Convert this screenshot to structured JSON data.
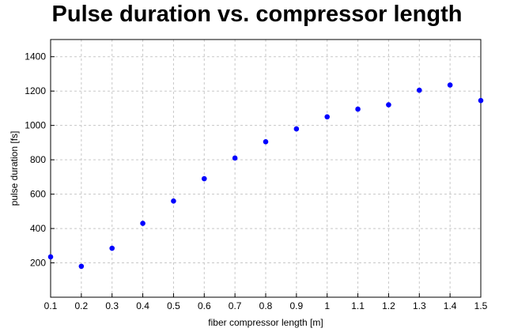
{
  "chart_data": {
    "type": "scatter",
    "title": "Pulse duration vs. compressor length",
    "xlabel": "fiber compressor length [m]",
    "ylabel": "pulse duration [fs]",
    "xlim": [
      0.1,
      1.5
    ],
    "ylim": [
      0,
      1500
    ],
    "xticks": [
      0.1,
      0.2,
      0.3,
      0.4,
      0.5,
      0.6,
      0.7,
      0.8,
      0.9,
      1,
      1.1,
      1.2,
      1.3,
      1.4,
      1.5
    ],
    "xtick_labels": [
      "0.1",
      "0.2",
      "0.3",
      "0.4",
      "0.5",
      "0.6",
      "0.7",
      "0.8",
      "0.9",
      "1",
      "1.1",
      "1.2",
      "1.3",
      "1.4",
      "1.5"
    ],
    "yticks": [
      200,
      400,
      600,
      800,
      1000,
      1200,
      1400
    ],
    "ytick_labels": [
      "200",
      "400",
      "600",
      "800",
      "1000",
      "1200",
      "1400"
    ],
    "grid": true,
    "marker_color": "#0000ff",
    "series": [
      {
        "x": [
          0.1,
          0.2,
          0.3,
          0.4,
          0.5,
          0.6,
          0.7,
          0.8,
          0.9,
          1.0,
          1.1,
          1.2,
          1.3,
          1.4,
          1.5
        ],
        "y": [
          235,
          180,
          285,
          430,
          560,
          690,
          810,
          905,
          980,
          1050,
          1095,
          1120,
          1205,
          1235,
          1145
        ]
      }
    ]
  }
}
